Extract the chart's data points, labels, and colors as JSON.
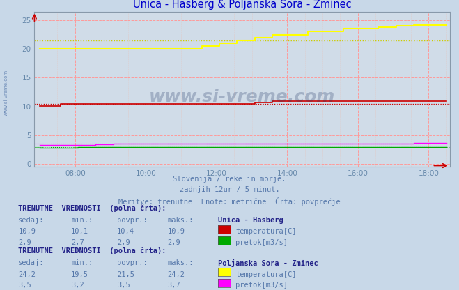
{
  "title": "Unica - Hasberg & Poljanska Sora - Zminec",
  "title_color": "#0000cc",
  "bg_color": "#c8d8e8",
  "plot_bg_color": "#d0dce8",
  "xlabel_color": "#6688aa",
  "text_color": "#5577aa",
  "watermark": "www.si-vreme.com",
  "subtitle1": "Slovenija / reke in morje.",
  "subtitle2": "zadnjih 12ur / 5 minut.",
  "subtitle3": "Meritve: trenutne  Enote: metrične  Črta: povprečje",
  "xlim_start": 6.85,
  "xlim_end": 18.6,
  "ylim_min": -0.5,
  "ylim_max": 26.5,
  "yticks": [
    0,
    5,
    10,
    15,
    20,
    25
  ],
  "xticks": [
    8,
    10,
    12,
    14,
    16,
    18
  ],
  "xtick_labels": [
    "08:00",
    "10:00",
    "12:00",
    "14:00",
    "16:00",
    "18:00"
  ],
  "unica_temp_color": "#cc0000",
  "unica_flow_color": "#00aa00",
  "sora_temp_color": "#ffff00",
  "sora_temp_avg_color": "#cccc00",
  "sora_flow_color": "#ff00ff",
  "table1_header": "TRENUTNE  VREDNOSTI  (polna črta):",
  "table1_cols": [
    "sedaj:",
    "min.:",
    "povpr.:",
    "maks.:"
  ],
  "table1_row1": [
    "10,9",
    "10,1",
    "10,4",
    "10,9"
  ],
  "table1_row2": [
    "2,9",
    "2,7",
    "2,9",
    "2,9"
  ],
  "table1_station": "Unica - Hasberg",
  "table2_header": "TRENUTNE  VREDNOSTI  (polna črta):",
  "table2_cols": [
    "sedaj:",
    "min.:",
    "povpr.:",
    "maks.:"
  ],
  "table2_row1": [
    "24,2",
    "19,5",
    "21,5",
    "24,2"
  ],
  "table2_row2": [
    "3,5",
    "3,2",
    "3,5",
    "3,7"
  ],
  "table2_station": "Poljanska Sora - Zminec",
  "unica_temp_avg": 10.4,
  "unica_flow_avg": 2.9,
  "sora_temp_avg": 21.5,
  "sora_flow_avg": 3.5
}
